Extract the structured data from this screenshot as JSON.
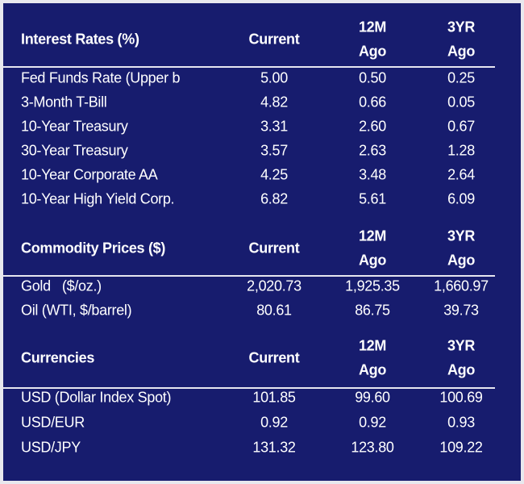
{
  "sections": [
    {
      "title": "Interest Rates (%)",
      "columns": [
        {
          "lines": [
            "Current"
          ]
        },
        {
          "lines": [
            "12M",
            "Ago"
          ]
        },
        {
          "lines": [
            "3YR",
            "Ago"
          ]
        }
      ],
      "rows": [
        {
          "label": "Fed Funds Rate (Upper b",
          "values": [
            "5.00",
            "0.50",
            "0.25"
          ]
        },
        {
          "label": "3-Month T-Bill",
          "values": [
            "4.82",
            "0.66",
            "0.05"
          ]
        },
        {
          "label": "10-Year Treasury",
          "values": [
            "3.31",
            "2.60",
            "0.67"
          ]
        },
        {
          "label": "30-Year Treasury",
          "values": [
            "3.57",
            "2.63",
            "1.28"
          ]
        },
        {
          "label": "10-Year Corporate AA",
          "values": [
            "4.25",
            "3.48",
            "2.64"
          ]
        },
        {
          "label": "10-Year High Yield Corp.",
          "values": [
            "6.82",
            "5.61",
            "6.09"
          ]
        }
      ]
    },
    {
      "title": "Commodity Prices ($)",
      "columns": [
        {
          "lines": [
            "Current"
          ]
        },
        {
          "lines": [
            "12M",
            "Ago"
          ]
        },
        {
          "lines": [
            "3YR",
            "Ago"
          ]
        }
      ],
      "rows": [
        {
          "label": "Gold   ($/oz.)",
          "values": [
            "2,020.73",
            "1,925.35",
            "1,660.97"
          ]
        },
        {
          "label": "Oil (WTI, $/barrel)",
          "values": [
            "80.61",
            "86.75",
            "39.73"
          ]
        }
      ]
    },
    {
      "title": "Currencies",
      "columns": [
        {
          "lines": [
            "Current"
          ]
        },
        {
          "lines": [
            "12M",
            "Ago"
          ]
        },
        {
          "lines": [
            "3YR",
            "Ago"
          ]
        }
      ],
      "rows": [
        {
          "label": "USD (Dollar Index Spot)",
          "values": [
            "101.85",
            "99.60",
            "100.69"
          ]
        },
        {
          "label": "USD/EUR",
          "values": [
            "0.92",
            "0.92",
            "0.93"
          ]
        },
        {
          "label": "USD/JPY",
          "values": [
            "131.32",
            "123.80",
            "109.22"
          ]
        }
      ]
    }
  ]
}
